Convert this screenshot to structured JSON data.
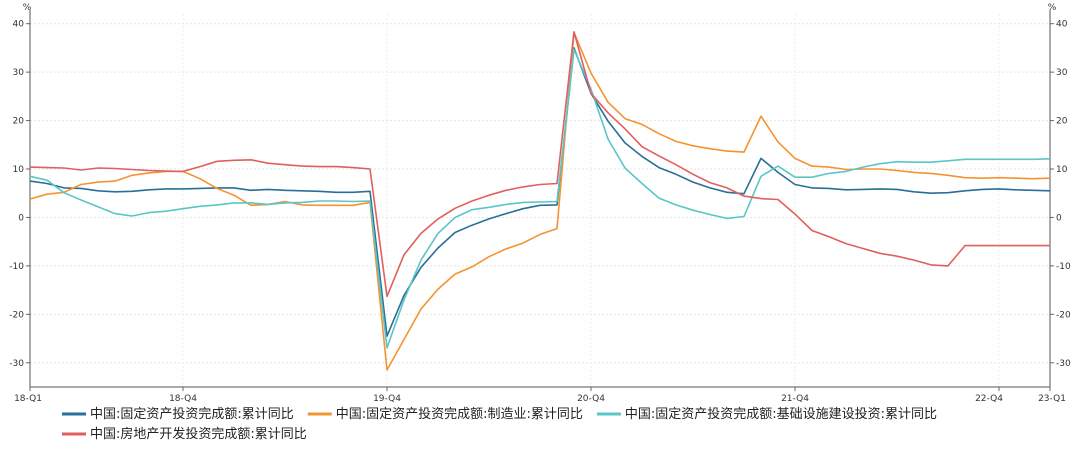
{
  "chart_data": {
    "type": "line",
    "title": "",
    "xlabel": "",
    "ylabel": "%",
    "ylabel_right": "%",
    "ylim": [
      -35,
      42
    ],
    "y_ticks": [
      -30,
      -20,
      -10,
      0,
      10,
      20,
      30,
      40
    ],
    "x_tick_labels": [
      "18-Q1",
      "18-Q4",
      "19-Q4",
      "20-Q4",
      "21-Q4",
      "22-Q4",
      "23-Q1"
    ],
    "x_tick_positions": [
      0,
      9,
      21,
      33,
      45,
      57,
      60
    ],
    "x": [
      0,
      1,
      2,
      3,
      4,
      5,
      6,
      7,
      8,
      9,
      10,
      11,
      12,
      13,
      14,
      15,
      16,
      17,
      18,
      19,
      20,
      21,
      22,
      23,
      24,
      25,
      26,
      27,
      28,
      29,
      30,
      31,
      32,
      33,
      34,
      35,
      36,
      37,
      38,
      39,
      40,
      41,
      42,
      43,
      44,
      45,
      46,
      47,
      48,
      49,
      50,
      51,
      52,
      53,
      54,
      55,
      56,
      57,
      58,
      59,
      60
    ],
    "grid": true,
    "legend_position": "bottom",
    "series": [
      {
        "name": "中国:固定资产投资完成额:累计同比",
        "color": "#2a6f97",
        "values": [
          7.5,
          7.0,
          6.1,
          6.0,
          5.5,
          5.3,
          5.4,
          5.7,
          5.9,
          5.9,
          6.0,
          6.1,
          6.1,
          5.6,
          5.8,
          5.6,
          5.5,
          5.4,
          5.2,
          5.2,
          5.4,
          -24.5,
          -16.1,
          -10.3,
          -6.3,
          -3.1,
          -1.6,
          -0.3,
          0.8,
          1.8,
          2.5,
          2.6,
          35.0,
          25.6,
          19.9,
          15.4,
          12.6,
          10.3,
          8.9,
          7.3,
          6.1,
          5.2,
          4.9,
          12.2,
          9.3,
          6.8,
          6.1,
          6.0,
          5.7,
          5.8,
          5.9,
          5.8,
          5.3,
          5.0,
          5.1,
          5.5,
          5.8,
          5.9,
          5.7,
          5.6,
          5.5
        ]
      },
      {
        "name": "中国:固定资产投资完成额:制造业:累计同比",
        "color": "#f59331",
        "values": [
          3.8,
          4.8,
          5.2,
          6.8,
          7.3,
          7.5,
          8.7,
          9.2,
          9.5,
          9.5,
          8.0,
          6.0,
          4.6,
          2.5,
          2.7,
          3.3,
          2.6,
          2.5,
          2.5,
          2.5,
          3.1,
          -31.5,
          -25.2,
          -18.9,
          -14.8,
          -11.7,
          -10.2,
          -8.1,
          -6.5,
          -5.3,
          -3.5,
          -2.3,
          38.2,
          29.8,
          23.8,
          20.4,
          19.2,
          17.3,
          15.7,
          14.8,
          14.2,
          13.7,
          13.5,
          20.9,
          15.6,
          12.2,
          10.6,
          10.4,
          9.9,
          10.0,
          10.0,
          9.7,
          9.3,
          9.1,
          8.7,
          8.2,
          8.1,
          8.2,
          8.1,
          8.0,
          8.1
        ]
      },
      {
        "name": "中国:固定资产投资完成额:基础设施建设投资:累计同比",
        "color": "#5ac6c6",
        "values": [
          8.5,
          7.7,
          5.1,
          3.6,
          2.2,
          0.8,
          0.3,
          1.0,
          1.3,
          1.8,
          2.3,
          2.6,
          3.0,
          3.0,
          2.7,
          3.0,
          3.1,
          3.4,
          3.4,
          3.3,
          3.4,
          -26.9,
          -17.0,
          -8.8,
          -3.3,
          0.0,
          1.6,
          2.1,
          2.7,
          3.1,
          3.2,
          3.3,
          34.7,
          26.5,
          16.2,
          10.2,
          7.0,
          4.0,
          2.6,
          1.5,
          0.6,
          -0.2,
          0.2,
          8.5,
          10.6,
          8.3,
          8.3,
          9.1,
          9.5,
          10.4,
          11.1,
          11.5,
          11.4,
          11.4,
          11.7,
          12.0,
          12.0,
          12.0,
          12.0,
          12.0,
          12.1
        ]
      },
      {
        "name": "中国:房地产开发投资完成额:累计同比",
        "color": "#e15f5f",
        "values": [
          10.4,
          10.3,
          10.2,
          9.8,
          10.2,
          10.1,
          9.9,
          9.7,
          9.6,
          9.5,
          10.5,
          11.6,
          11.8,
          11.9,
          11.2,
          10.9,
          10.6,
          10.5,
          10.5,
          10.3,
          10.0,
          -16.3,
          -7.7,
          -3.3,
          -0.3,
          1.9,
          3.4,
          4.6,
          5.6,
          6.3,
          6.8,
          7.0,
          38.3,
          25.6,
          21.6,
          18.3,
          14.6,
          12.7,
          10.9,
          8.9,
          7.2,
          6.1,
          4.4,
          3.9,
          3.7,
          0.7,
          -2.7,
          -4.0,
          -5.4,
          -6.4,
          -7.4,
          -8.0,
          -8.8,
          -9.8,
          -10.0,
          -5.8,
          -5.8,
          -5.8,
          -5.8,
          -5.8,
          -5.8
        ]
      }
    ]
  }
}
